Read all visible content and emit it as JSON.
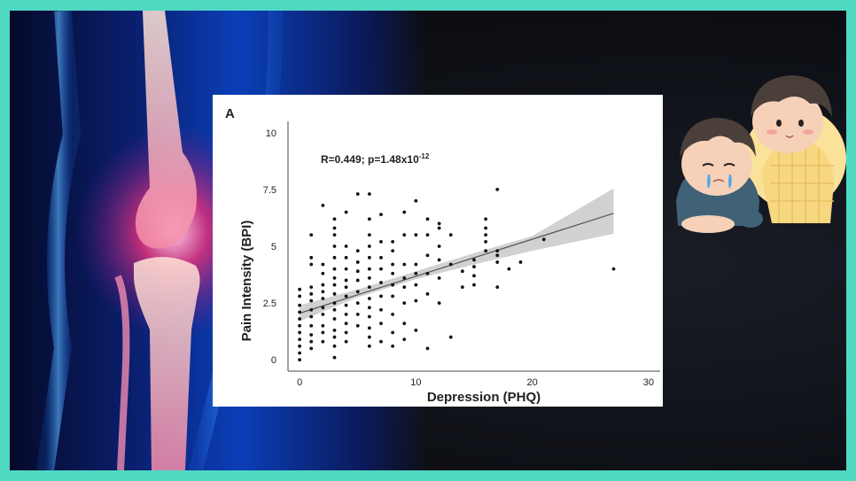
{
  "panel_letter": "A",
  "stats_text": {
    "prefix": "R=0.449; p=1.48x10",
    "exponent": "-12"
  },
  "colors": {
    "border": "#4fd9c3",
    "points": "#111111",
    "trend_line": "#555555",
    "confidence_band": "#c9c9c9"
  },
  "illustrations": {
    "left": "knee-joint-xray-illustration",
    "right": "two-cartoon-children-one-crying"
  },
  "chart_data": {
    "type": "scatter",
    "xlabel": "Depression (PHQ)",
    "ylabel": "Pain Intensity (BPI)",
    "xlim": [
      -1,
      31
    ],
    "ylim": [
      -0.5,
      10.5
    ],
    "xticks": [
      "0",
      "10",
      "20",
      "30"
    ],
    "yticks": [
      "0",
      "2.5",
      "5",
      "7.5",
      "10"
    ],
    "grid": false,
    "legend": "none",
    "trend_line": {
      "x": [
        0,
        27
      ],
      "y": [
        2.05,
        6.45
      ]
    },
    "confidence_band": {
      "x": [
        0,
        5,
        10,
        15,
        20,
        27
      ],
      "lower": [
        1.7,
        2.75,
        3.55,
        4.2,
        4.8,
        5.55
      ],
      "upper": [
        2.4,
        3.1,
        3.9,
        4.7,
        5.45,
        7.55
      ]
    },
    "points": [
      [
        0,
        0
      ],
      [
        0,
        0.3
      ],
      [
        0,
        0.6
      ],
      [
        0,
        0.9
      ],
      [
        0,
        1.2
      ],
      [
        0,
        1.5
      ],
      [
        0,
        1.8
      ],
      [
        0,
        2.1
      ],
      [
        0,
        2.4
      ],
      [
        0,
        2.8
      ],
      [
        0,
        3.1
      ],
      [
        1,
        0.5
      ],
      [
        1,
        0.8
      ],
      [
        1,
        1.1
      ],
      [
        1,
        1.5
      ],
      [
        1,
        1.9
      ],
      [
        1,
        2.2
      ],
      [
        1,
        2.6
      ],
      [
        1,
        2.9
      ],
      [
        1,
        3.2
      ],
      [
        1,
        4.2
      ],
      [
        1,
        4.5
      ],
      [
        1,
        5.5
      ],
      [
        2,
        0.8
      ],
      [
        2,
        1.2
      ],
      [
        2,
        1.5
      ],
      [
        2,
        2.0
      ],
      [
        2,
        2.3
      ],
      [
        2,
        2.7
      ],
      [
        2,
        3.0
      ],
      [
        2,
        3.3
      ],
      [
        2,
        3.8
      ],
      [
        2,
        4.2
      ],
      [
        2,
        6.8
      ],
      [
        3,
        0.1
      ],
      [
        3,
        0.6
      ],
      [
        3,
        1.0
      ],
      [
        3,
        1.3
      ],
      [
        3,
        1.8
      ],
      [
        3,
        2.2
      ],
      [
        3,
        2.5
      ],
      [
        3,
        2.9
      ],
      [
        3,
        3.3
      ],
      [
        3,
        3.6
      ],
      [
        3,
        4.0
      ],
      [
        3,
        4.5
      ],
      [
        3,
        5.0
      ],
      [
        3,
        5.5
      ],
      [
        3,
        5.8
      ],
      [
        3,
        6.2
      ],
      [
        4,
        0.8
      ],
      [
        4,
        1.2
      ],
      [
        4,
        1.6
      ],
      [
        4,
        2.0
      ],
      [
        4,
        2.4
      ],
      [
        4,
        2.8
      ],
      [
        4,
        3.2
      ],
      [
        4,
        3.5
      ],
      [
        4,
        4.0
      ],
      [
        4,
        4.5
      ],
      [
        4,
        5.0
      ],
      [
        4,
        6.5
      ],
      [
        5,
        1.5
      ],
      [
        5,
        2.0
      ],
      [
        5,
        2.5
      ],
      [
        5,
        3.0
      ],
      [
        5,
        3.5
      ],
      [
        5,
        3.9
      ],
      [
        5,
        4.3
      ],
      [
        5,
        4.8
      ],
      [
        5,
        7.3
      ],
      [
        6,
        0.6
      ],
      [
        6,
        1.0
      ],
      [
        6,
        1.4
      ],
      [
        6,
        1.9
      ],
      [
        6,
        2.3
      ],
      [
        6,
        2.7
      ],
      [
        6,
        3.2
      ],
      [
        6,
        3.6
      ],
      [
        6,
        4.0
      ],
      [
        6,
        4.5
      ],
      [
        6,
        5.0
      ],
      [
        6,
        5.5
      ],
      [
        6,
        6.2
      ],
      [
        6,
        7.3
      ],
      [
        7,
        0.8
      ],
      [
        7,
        1.6
      ],
      [
        7,
        2.2
      ],
      [
        7,
        2.8
      ],
      [
        7,
        3.4
      ],
      [
        7,
        4.0
      ],
      [
        7,
        4.5
      ],
      [
        7,
        5.2
      ],
      [
        7,
        6.4
      ],
      [
        8,
        0.6
      ],
      [
        8,
        1.2
      ],
      [
        8,
        2.0
      ],
      [
        8,
        2.8
      ],
      [
        8,
        3.3
      ],
      [
        8,
        3.8
      ],
      [
        8,
        4.2
      ],
      [
        8,
        4.8
      ],
      [
        8,
        5.2
      ],
      [
        9,
        0.9
      ],
      [
        9,
        1.6
      ],
      [
        9,
        2.5
      ],
      [
        9,
        3.2
      ],
      [
        9,
        3.6
      ],
      [
        9,
        4.2
      ],
      [
        9,
        5.5
      ],
      [
        9,
        6.5
      ],
      [
        10,
        1.3
      ],
      [
        10,
        2.6
      ],
      [
        10,
        3.3
      ],
      [
        10,
        3.8
      ],
      [
        10,
        4.2
      ],
      [
        10,
        5.5
      ],
      [
        10,
        7.0
      ],
      [
        11,
        0.5
      ],
      [
        11,
        2.9
      ],
      [
        11,
        3.8
      ],
      [
        11,
        4.6
      ],
      [
        11,
        5.5
      ],
      [
        11,
        6.2
      ],
      [
        12,
        2.5
      ],
      [
        12,
        3.6
      ],
      [
        12,
        4.4
      ],
      [
        12,
        5.0
      ],
      [
        12,
        5.8
      ],
      [
        12,
        6.0
      ],
      [
        13,
        1.0
      ],
      [
        13,
        4.2
      ],
      [
        13,
        5.5
      ],
      [
        14,
        3.2
      ],
      [
        14,
        3.9
      ],
      [
        15,
        3.3
      ],
      [
        15,
        3.7
      ],
      [
        15,
        4.1
      ],
      [
        15,
        4.4
      ],
      [
        16,
        4.8
      ],
      [
        16,
        5.2
      ],
      [
        16,
        5.5
      ],
      [
        16,
        5.8
      ],
      [
        16,
        6.2
      ],
      [
        17,
        3.2
      ],
      [
        17,
        4.3
      ],
      [
        17,
        4.6
      ],
      [
        17,
        4.8
      ],
      [
        17,
        7.5
      ],
      [
        18,
        4.0
      ],
      [
        19,
        4.3
      ],
      [
        21,
        5.3
      ],
      [
        27,
        4.0
      ]
    ]
  }
}
